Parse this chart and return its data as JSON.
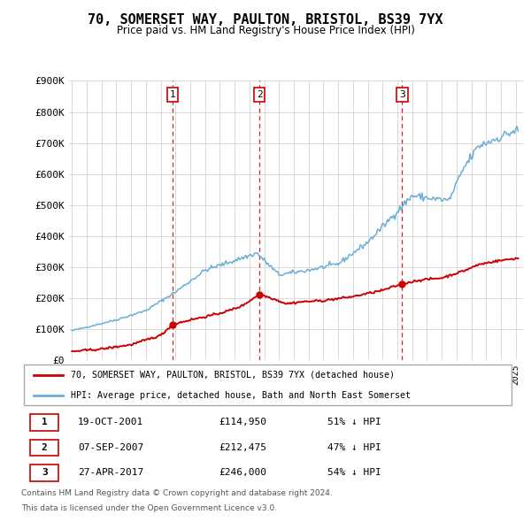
{
  "title": "70, SOMERSET WAY, PAULTON, BRISTOL, BS39 7YX",
  "subtitle": "Price paid vs. HM Land Registry's House Price Index (HPI)",
  "ylim": [
    0,
    900000
  ],
  "yticks": [
    0,
    100000,
    200000,
    300000,
    400000,
    500000,
    600000,
    700000,
    800000,
    900000
  ],
  "ytick_labels": [
    "£0",
    "£100K",
    "£200K",
    "£300K",
    "£400K",
    "£500K",
    "£600K",
    "£700K",
    "£800K",
    "£900K"
  ],
  "hpi_color": "#6aaed6",
  "sale_color": "#cc0000",
  "vline_color": "#cc0000",
  "background_color": "#ffffff",
  "grid_color": "#cccccc",
  "trans_years": [
    2001.8,
    2007.67,
    2017.33
  ],
  "trans_prices": [
    114950,
    212475,
    246000
  ],
  "trans_labels": [
    "1",
    "2",
    "3"
  ],
  "legend_entries": [
    "70, SOMERSET WAY, PAULTON, BRISTOL, BS39 7YX (detached house)",
    "HPI: Average price, detached house, Bath and North East Somerset"
  ],
  "footer_lines": [
    "Contains HM Land Registry data © Crown copyright and database right 2024.",
    "This data is licensed under the Open Government Licence v3.0."
  ],
  "table_rows": [
    [
      "1",
      "19-OCT-2001",
      "£114,950",
      "51% ↓ HPI"
    ],
    [
      "2",
      "07-SEP-2007",
      "£212,475",
      "47% ↓ HPI"
    ],
    [
      "3",
      "27-APR-2017",
      "£246,000",
      "54% ↓ HPI"
    ]
  ]
}
